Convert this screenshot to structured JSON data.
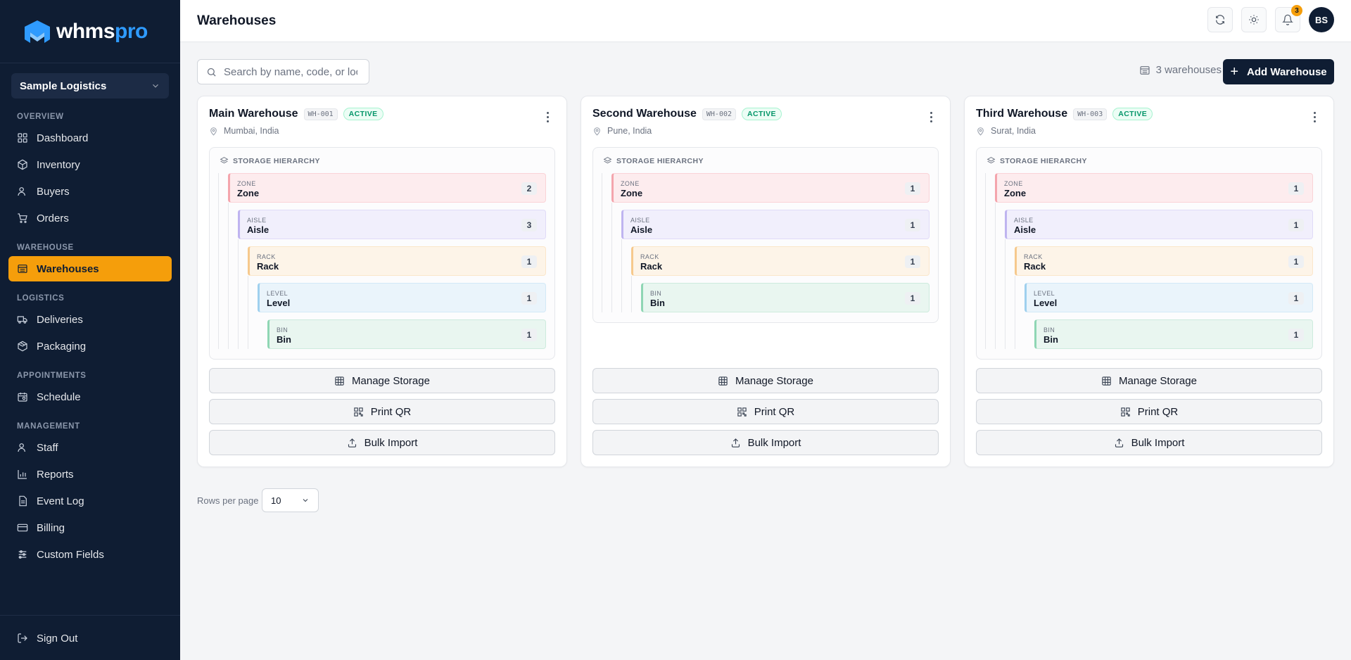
{
  "brand": {
    "name_a": "whms",
    "name_b": "pro",
    "accent": "#f59e0b",
    "navy": "#0f1d33"
  },
  "org": {
    "selected": "Sample Logistics"
  },
  "sidebar": {
    "sections": [
      {
        "heading": "OVERVIEW",
        "items": [
          {
            "label": "Dashboard",
            "icon": "grid-icon"
          },
          {
            "label": "Inventory",
            "icon": "box-icon"
          },
          {
            "label": "Buyers",
            "icon": "user-icon"
          },
          {
            "label": "Orders",
            "icon": "cart-icon"
          }
        ]
      },
      {
        "heading": "WAREHOUSE",
        "items": [
          {
            "label": "Warehouses",
            "icon": "warehouse-icon",
            "active": true
          }
        ]
      },
      {
        "heading": "LOGISTICS",
        "items": [
          {
            "label": "Deliveries",
            "icon": "truck-icon"
          },
          {
            "label": "Packaging",
            "icon": "package-icon"
          }
        ]
      },
      {
        "heading": "APPOINTMENTS",
        "items": [
          {
            "label": "Schedule",
            "icon": "calendar-icon"
          }
        ]
      },
      {
        "heading": "MANAGEMENT",
        "items": [
          {
            "label": "Staff",
            "icon": "staff-icon"
          },
          {
            "label": "Reports",
            "icon": "chart-icon"
          },
          {
            "label": "Event Log",
            "icon": "log-icon"
          },
          {
            "label": "Billing",
            "icon": "card-icon"
          },
          {
            "label": "Custom Fields",
            "icon": "sliders-icon"
          }
        ]
      }
    ],
    "signout": "Sign Out"
  },
  "header": {
    "title": "Warehouses",
    "notifications": "3",
    "avatar": "BS"
  },
  "toolbar": {
    "search_placeholder": "Search by name, code, or location",
    "count": "3 warehouses",
    "add_label": "Add Warehouse"
  },
  "labels": {
    "hierarchy": "STORAGE HIERARCHY",
    "manage": "Manage Storage",
    "print": "Print QR",
    "import": "Bulk Import"
  },
  "warehouses": [
    {
      "name": "Main Warehouse",
      "code": "WH-001",
      "status": "ACTIVE",
      "location": "Mumbai, India",
      "levels": [
        {
          "type": "ZONE",
          "name": "Zone",
          "count": "2"
        },
        {
          "type": "AISLE",
          "name": "Aisle",
          "count": "3"
        },
        {
          "type": "RACK",
          "name": "Rack",
          "count": "1"
        },
        {
          "type": "LEVEL",
          "name": "Level",
          "count": "1"
        },
        {
          "type": "BIN",
          "name": "Bin",
          "count": "1"
        }
      ]
    },
    {
      "name": "Second Warehouse",
      "code": "WH-002",
      "status": "ACTIVE",
      "location": "Pune, India",
      "levels": [
        {
          "type": "ZONE",
          "name": "Zone",
          "count": "1"
        },
        {
          "type": "AISLE",
          "name": "Aisle",
          "count": "1"
        },
        {
          "type": "RACK",
          "name": "Rack",
          "count": "1"
        },
        {
          "type": "BIN",
          "name": "Bin",
          "count": "1"
        }
      ]
    },
    {
      "name": "Third Warehouse",
      "code": "WH-003",
      "status": "ACTIVE",
      "location": "Surat, India",
      "levels": [
        {
          "type": "ZONE",
          "name": "Zone",
          "count": "1"
        },
        {
          "type": "AISLE",
          "name": "Aisle",
          "count": "1"
        },
        {
          "type": "RACK",
          "name": "Rack",
          "count": "1"
        },
        {
          "type": "LEVEL",
          "name": "Level",
          "count": "1"
        },
        {
          "type": "BIN",
          "name": "Bin",
          "count": "1"
        }
      ]
    }
  ],
  "pagination": {
    "rows_label": "Rows per page",
    "rows_value": "10"
  }
}
